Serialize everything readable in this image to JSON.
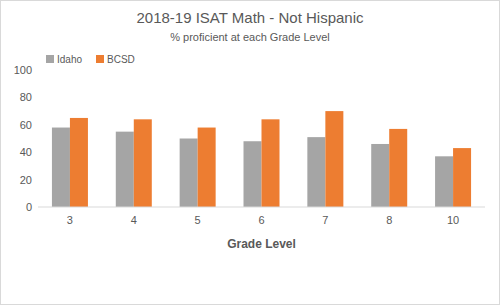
{
  "chart_data": {
    "type": "bar",
    "title": "2018-19 ISAT Math - Not Hispanic",
    "subtitle": "% proficient at each Grade Level",
    "x_label": "Grade Level",
    "categories": [
      "3",
      "4",
      "5",
      "6",
      "7",
      "8",
      "10"
    ],
    "series": [
      {
        "name": "Idaho",
        "color": "#a5a5a5",
        "values": [
          58,
          55,
          50,
          48,
          51,
          46,
          37
        ]
      },
      {
        "name": "BCSD",
        "color": "#ed7d31",
        "values": [
          65,
          64,
          58,
          64,
          70,
          57,
          43
        ]
      }
    ],
    "ylim": [
      0,
      100
    ],
    "yticks": [
      0,
      20,
      40,
      60,
      80,
      100
    ],
    "grid": false,
    "legend": "top-left"
  }
}
